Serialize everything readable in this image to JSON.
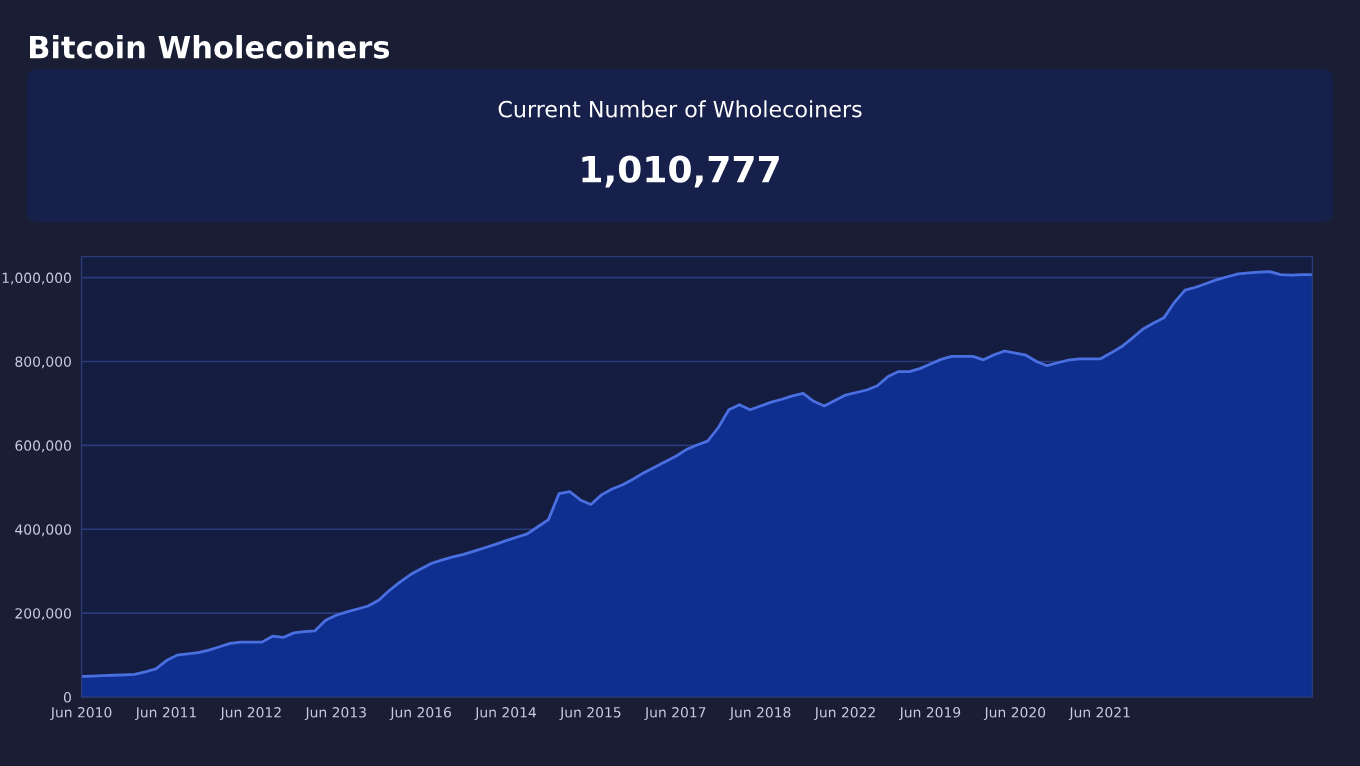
{
  "chart_data": {
    "type": "area",
    "title": "Bitcoin Wholecoiners",
    "annotations": [
      "Current Number of Wholecoiners",
      "1,010,777"
    ],
    "categories": [
      "Jun 2010",
      null,
      null,
      null,
      null,
      null,
      null,
      null,
      "Jun 2011",
      null,
      null,
      null,
      null,
      null,
      null,
      null,
      "Jun 2012",
      null,
      null,
      null,
      null,
      null,
      null,
      null,
      "Jun 2013",
      null,
      null,
      null,
      null,
      null,
      null,
      null,
      "Jun 2016",
      null,
      null,
      null,
      null,
      null,
      null,
      null,
      "Jun 2014",
      null,
      null,
      null,
      null,
      null,
      null,
      null,
      "Jun 2015",
      null,
      null,
      null,
      null,
      null,
      null,
      null,
      "Jun 2017",
      null,
      null,
      null,
      null,
      null,
      null,
      null,
      "Jun 2018",
      null,
      null,
      null,
      null,
      null,
      null,
      null,
      "Jun 2022",
      null,
      null,
      null,
      null,
      null,
      null,
      null,
      "Jun 2019",
      null,
      null,
      null,
      null,
      null,
      null,
      null,
      "Jun 2020",
      null,
      null,
      null,
      null,
      null,
      null,
      null,
      "Jun 2021",
      null,
      null,
      null,
      null,
      null,
      null,
      null,
      null,
      null,
      null,
      null,
      null,
      null,
      null,
      null,
      null,
      null,
      null,
      null,
      null
    ],
    "series": [
      {
        "color": "#4a6fe0",
        "values": [
          49000,
          50000,
          51000,
          52000,
          53000,
          54000,
          60000,
          67000,
          87000,
          100000,
          103000,
          106000,
          112000,
          120000,
          128000,
          131000,
          131000,
          131000,
          145000,
          142000,
          153000,
          156000,
          158000,
          183000,
          195000,
          203000,
          210000,
          217000,
          231000,
          254000,
          274000,
          292000,
          306000,
          319000,
          327000,
          334000,
          340000,
          348000,
          356000,
          364000,
          373000,
          381000,
          389000,
          406000,
          423000,
          485000,
          490000,
          470000,
          459000,
          482000,
          496000,
          506000,
          520000,
          535000,
          548000,
          561000,
          574000,
          590000,
          601000,
          610000,
          642000,
          685000,
          697000,
          685000,
          694000,
          703000,
          710000,
          718000,
          724000,
          705000,
          694000,
          707000,
          720000,
          726000,
          732000,
          742000,
          764000,
          776000,
          776000,
          783000,
          794000,
          805000,
          812000,
          812000,
          812000,
          804000,
          816000,
          825000,
          820000,
          815000,
          800000,
          790000,
          797000,
          803000,
          806000,
          806000,
          806000,
          820000,
          835000,
          855000,
          877000,
          891000,
          904000,
          941000,
          970000,
          977000,
          986000,
          995000,
          1002000,
          1009000,
          1011000,
          1013000,
          1014000,
          1007000,
          1006000,
          1007000,
          1007000
        ]
      }
    ],
    "ylim": [
      0,
      1050000
    ],
    "yticks": [
      {
        "value": 0,
        "label": "0"
      },
      {
        "value": 200000,
        "label": "200,000"
      },
      {
        "value": 400000,
        "label": "400,000"
      },
      {
        "value": 600000,
        "label": "600,000"
      },
      {
        "value": 800000,
        "label": "800,000"
      },
      {
        "value": 1000000,
        "label": "1,000,000"
      }
    ],
    "grid": "y"
  }
}
